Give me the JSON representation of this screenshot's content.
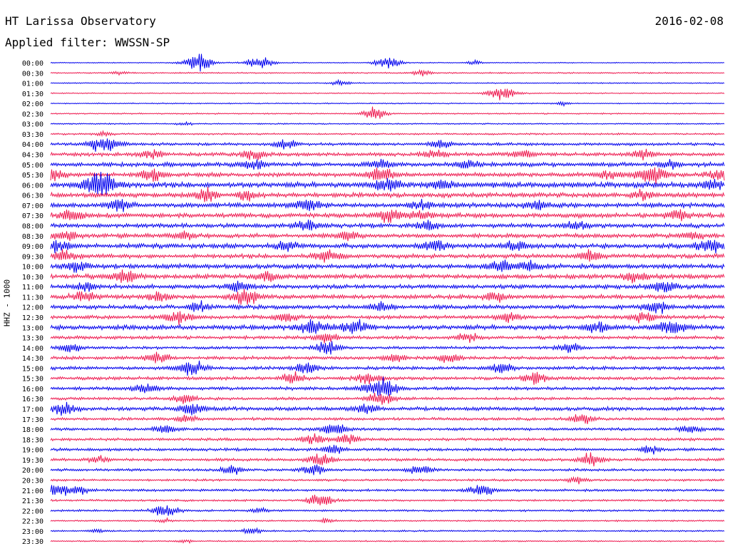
{
  "header": {
    "title": "HT Larissa Observatory",
    "date": "2016-02-08",
    "filter": "Applied filter: WWSSN-SP"
  },
  "station_label": "HHZ - 1000",
  "colors": {
    "even": "#0000ee",
    "odd": "#ee1a50"
  },
  "chart_data": {
    "type": "line",
    "title": "HT Larissa Observatory",
    "ylabel": "HHZ - 1000",
    "row_labels": [
      "00:00",
      "00:30",
      "01:00",
      "01:30",
      "02:00",
      "02:30",
      "03:00",
      "03:30",
      "04:00",
      "04:30",
      "05:00",
      "05:30",
      "06:00",
      "06:30",
      "07:00",
      "07:30",
      "08:00",
      "08:30",
      "09:00",
      "09:30",
      "10:00",
      "10:30",
      "11:00",
      "11:30",
      "12:00",
      "12:30",
      "13:00",
      "13:30",
      "14:00",
      "14:30",
      "15:00",
      "15:30",
      "16:00",
      "16:30",
      "17:00",
      "17:30",
      "18:00",
      "18:30",
      "19:00",
      "19:30",
      "20:00",
      "20:30",
      "21:00",
      "21:30",
      "22:00",
      "22:30",
      "23:00",
      "23:30"
    ],
    "noise_level": [
      0.4,
      0.6,
      0.5,
      0.5,
      0.5,
      0.6,
      0.6,
      0.8,
      1.3,
      1.6,
      1.9,
      1.9,
      2.4,
      2.1,
      2.1,
      2.1,
      1.9,
      1.9,
      2.1,
      1.9,
      2.1,
      2.1,
      1.9,
      1.9,
      1.9,
      1.7,
      2.1,
      1.5,
      1.3,
      1.5,
      1.5,
      1.5,
      1.5,
      1.3,
      1.7,
      1.3,
      1.3,
      1.3,
      1.3,
      1.3,
      1.1,
      1.0,
      1.1,
      0.9,
      0.9,
      0.7,
      0.7,
      0.6
    ],
    "events": [
      [
        [
          0.22,
          2.3
        ],
        [
          0.31,
          1.8
        ],
        [
          0.5,
          1.8
        ],
        [
          0.63,
          0.6
        ]
      ],
      [
        [
          0.55,
          0.8
        ],
        [
          0.1,
          0.5
        ]
      ],
      [
        [
          0.43,
          0.7
        ]
      ],
      [
        [
          0.67,
          2.0
        ]
      ],
      [
        [
          0.76,
          0.5
        ]
      ],
      [
        [
          0.48,
          1.5
        ]
      ],
      [
        [
          0.2,
          0.4
        ]
      ],
      [
        [
          0.08,
          0.6
        ]
      ],
      [
        [
          0.08,
          2.2
        ],
        [
          0.35,
          1.3
        ],
        [
          0.58,
          1.2
        ]
      ],
      [
        [
          0.15,
          1.2
        ],
        [
          0.3,
          1.4
        ],
        [
          0.57,
          1.2
        ],
        [
          0.7,
          1.3
        ],
        [
          0.88,
          1.3
        ]
      ],
      [
        [
          0.3,
          1.5
        ],
        [
          0.49,
          1.2
        ],
        [
          0.62,
          1.3
        ],
        [
          0.92,
          1.1
        ]
      ],
      [
        [
          0.0,
          1.8
        ],
        [
          0.15,
          1.5
        ],
        [
          0.49,
          1.9
        ],
        [
          0.83,
          1.2
        ],
        [
          0.89,
          2.2
        ],
        [
          0.99,
          1.5
        ]
      ],
      [
        [
          0.07,
          2.0
        ],
        [
          0.08,
          2.5
        ],
        [
          0.5,
          2.0
        ],
        [
          0.58,
          1.3
        ],
        [
          0.98,
          1.3
        ]
      ],
      [
        [
          0.23,
          1.5
        ],
        [
          0.29,
          1.2
        ],
        [
          0.88,
          1.2
        ]
      ],
      [
        [
          0.1,
          1.5
        ],
        [
          0.38,
          1.8
        ],
        [
          0.55,
          1.3
        ],
        [
          0.72,
          1.2
        ]
      ],
      [
        [
          0.03,
          1.5
        ],
        [
          0.5,
          1.7
        ],
        [
          0.55,
          1.3
        ],
        [
          0.93,
          1.3
        ]
      ],
      [
        [
          0.38,
          1.5
        ],
        [
          0.56,
          1.3
        ],
        [
          0.78,
          1.2
        ]
      ],
      [
        [
          0.02,
          1.5
        ],
        [
          0.2,
          1.2
        ],
        [
          0.44,
          1.3
        ],
        [
          0.95,
          1.2
        ]
      ],
      [
        [
          0.01,
          1.5
        ],
        [
          0.35,
          1.3
        ],
        [
          0.57,
          1.7
        ],
        [
          0.69,
          1.4
        ],
        [
          0.98,
          2.0
        ]
      ],
      [
        [
          0.02,
          1.4
        ],
        [
          0.41,
          1.7
        ],
        [
          0.8,
          1.3
        ]
      ],
      [
        [
          0.04,
          1.5
        ],
        [
          0.67,
          1.6
        ],
        [
          0.71,
          1.3
        ]
      ],
      [
        [
          0.11,
          1.7
        ],
        [
          0.32,
          1.3
        ],
        [
          0.87,
          1.4
        ]
      ],
      [
        [
          0.05,
          1.3
        ],
        [
          0.28,
          1.5
        ],
        [
          0.91,
          1.7
        ]
      ],
      [
        [
          0.05,
          1.5
        ],
        [
          0.16,
          1.2
        ],
        [
          0.29,
          2.0
        ],
        [
          0.66,
          1.2
        ]
      ],
      [
        [
          0.22,
          1.2
        ],
        [
          0.49,
          1.3
        ],
        [
          0.9,
          1.5
        ]
      ],
      [
        [
          0.19,
          1.7
        ],
        [
          0.35,
          1.2
        ],
        [
          0.68,
          1.3
        ],
        [
          0.88,
          1.5
        ]
      ],
      [
        [
          0.39,
          2.2
        ],
        [
          0.45,
          1.8
        ],
        [
          0.81,
          1.5
        ],
        [
          0.92,
          1.8
        ]
      ],
      [
        [
          0.41,
          1.3
        ],
        [
          0.62,
          1.2
        ]
      ],
      [
        [
          0.03,
          1.2
        ],
        [
          0.41,
          1.7
        ],
        [
          0.77,
          1.4
        ]
      ],
      [
        [
          0.16,
          1.5
        ],
        [
          0.51,
          1.2
        ],
        [
          0.59,
          1.3
        ]
      ],
      [
        [
          0.21,
          2.0
        ],
        [
          0.38,
          1.5
        ],
        [
          0.67,
          1.3
        ]
      ],
      [
        [
          0.36,
          1.5
        ],
        [
          0.47,
          1.4
        ],
        [
          0.72,
          1.7
        ]
      ],
      [
        [
          0.14,
          1.5
        ],
        [
          0.48,
          1.9
        ],
        [
          0.5,
          1.5
        ]
      ],
      [
        [
          0.2,
          1.3
        ],
        [
          0.49,
          1.7
        ]
      ],
      [
        [
          0.02,
          1.5
        ],
        [
          0.21,
          1.6
        ],
        [
          0.47,
          1.3
        ]
      ],
      [
        [
          0.2,
          1.0
        ],
        [
          0.79,
          1.3
        ]
      ],
      [
        [
          0.17,
          1.3
        ],
        [
          0.42,
          1.7
        ],
        [
          0.95,
          1.2
        ]
      ],
      [
        [
          0.39,
          1.3
        ],
        [
          0.44,
          1.5
        ]
      ],
      [
        [
          0.42,
          1.2
        ],
        [
          0.89,
          1.0
        ]
      ],
      [
        [
          0.07,
          1.0
        ],
        [
          0.4,
          1.7
        ],
        [
          0.8,
          1.6
        ]
      ],
      [
        [
          0.27,
          1.3
        ],
        [
          0.39,
          1.5
        ],
        [
          0.55,
          1.5
        ]
      ],
      [
        [
          0.78,
          0.8
        ]
      ],
      [
        [
          0.01,
          1.5
        ],
        [
          0.04,
          1.3
        ],
        [
          0.64,
          1.7
        ]
      ],
      [
        [
          0.4,
          1.8
        ]
      ],
      [
        [
          0.17,
          1.7
        ],
        [
          0.31,
          0.7
        ]
      ],
      [
        [
          0.17,
          0.5
        ],
        [
          0.41,
          0.6
        ]
      ],
      [
        [
          0.07,
          0.5
        ],
        [
          0.3,
          1.0
        ]
      ],
      [
        [
          0.2,
          0.4
        ]
      ]
    ]
  }
}
